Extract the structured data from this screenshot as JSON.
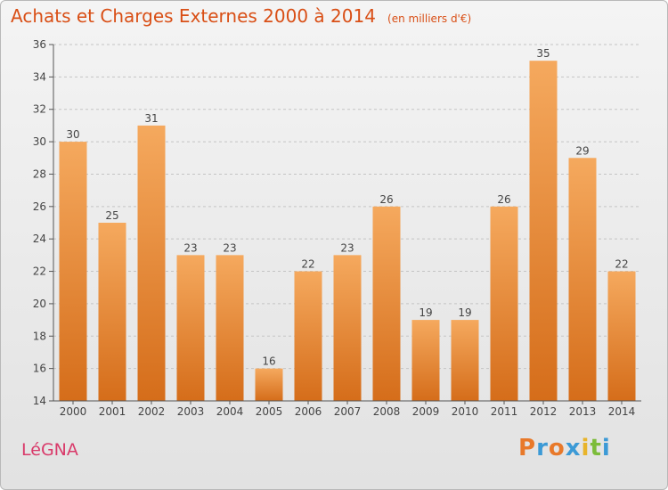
{
  "header": {
    "title": "Achats et Charges Externes 2000 à 2014",
    "unit": "(en milliers d'€)"
  },
  "footer": {
    "commune": "LéGNA",
    "logo_text": "Proxiti"
  },
  "colors": {
    "title": "#d94f16",
    "bar_top": "#f5a95e",
    "bar_bottom": "#d56d1a",
    "commune": "#d93a6a"
  },
  "chart_data": {
    "type": "bar",
    "title": "Achats et Charges Externes 2000 à 2014",
    "subtitle": "(en milliers d'€)",
    "categories": [
      "2000",
      "2001",
      "2002",
      "2003",
      "2004",
      "2005",
      "2006",
      "2007",
      "2008",
      "2009",
      "2010",
      "2011",
      "2012",
      "2013",
      "2014"
    ],
    "values": [
      30,
      25,
      31,
      23,
      23,
      16,
      22,
      23,
      26,
      19,
      19,
      26,
      35,
      29,
      22
    ],
    "ylim": [
      14,
      36
    ],
    "yticks": [
      14,
      16,
      18,
      20,
      22,
      24,
      26,
      28,
      30,
      32,
      34,
      36
    ],
    "grid": true,
    "data_labels": true
  }
}
